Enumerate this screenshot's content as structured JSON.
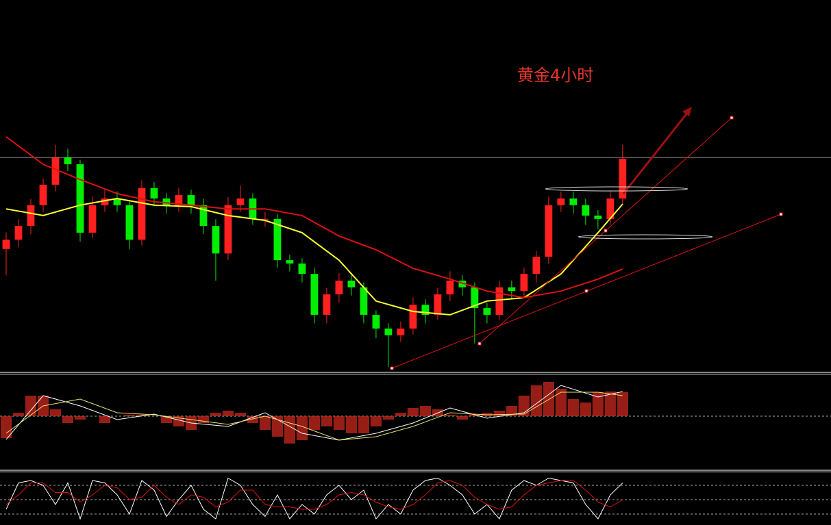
{
  "chart_data": [
    {
      "type": "candlestick",
      "title": "黄金4小时",
      "up_color": "#ff2020",
      "down_color": "#00ee00",
      "xlim": [
        -0.5,
        66.9
      ],
      "ylim": [
        0,
        100
      ],
      "open": [
        33.0,
        35.5,
        39.2,
        44.8,
        50.3,
        57.6,
        55.8,
        37.4,
        44.8,
        46.6,
        44.8,
        35.5,
        49.4,
        46.6,
        44.8,
        47.5,
        44.8,
        39.2,
        31.8,
        44.8,
        46.6,
        41.1,
        41.1,
        30.0,
        29.1,
        26.3,
        15.3,
        20.8,
        24.5,
        22.7,
        15.3,
        11.6,
        9.8,
        11.6,
        18.0,
        15.3,
        20.8,
        24.5,
        22.7,
        17.1,
        15.3,
        22.7,
        21.7,
        26.3,
        30.9,
        44.8,
        46.6,
        44.8,
        42.0,
        41.1,
        46.6
      ],
      "high": [
        37.5,
        41.0,
        46.5,
        52.0,
        61.0,
        60.0,
        57.0,
        47.0,
        49.0,
        48.5,
        46.0,
        51.5,
        51.0,
        48.0,
        49.5,
        49.0,
        46.5,
        41.0,
        47.0,
        50.0,
        48.0,
        43.0,
        42.5,
        31.5,
        30.5,
        28.0,
        22.5,
        26.5,
        26.0,
        24.0,
        16.5,
        13.0,
        13.5,
        20.0,
        19.5,
        22.5,
        27.0,
        26.0,
        24.0,
        18.5,
        24.5,
        24.5,
        28.0,
        32.5,
        47.0,
        48.5,
        48.5,
        46.5,
        43.5,
        48.5,
        61.0
      ],
      "low": [
        26.0,
        33.5,
        37.0,
        43.0,
        48.5,
        54.0,
        35.0,
        36.0,
        43.0,
        43.0,
        33.0,
        34.0,
        44.5,
        42.5,
        43.0,
        42.5,
        37.0,
        24.5,
        30.0,
        43.0,
        39.5,
        39.0,
        28.0,
        27.0,
        24.0,
        13.0,
        13.0,
        18.5,
        20.5,
        13.0,
        9.0,
        1.3,
        8.0,
        10.0,
        13.0,
        14.0,
        19.0,
        20.5,
        7.6,
        13.0,
        14.0,
        19.5,
        20.0,
        24.0,
        29.0,
        43.0,
        42.5,
        39.5,
        38.5,
        39.5,
        45.0
      ],
      "close": [
        35.5,
        39.2,
        44.8,
        50.3,
        57.6,
        55.8,
        37.4,
        44.8,
        46.6,
        44.8,
        35.5,
        49.4,
        46.6,
        44.8,
        47.5,
        44.8,
        39.2,
        31.8,
        44.8,
        46.6,
        41.1,
        41.1,
        30.0,
        29.1,
        26.3,
        15.3,
        20.8,
        24.5,
        22.7,
        15.3,
        11.6,
        9.8,
        11.6,
        18.0,
        15.3,
        20.8,
        24.5,
        22.7,
        17.1,
        15.3,
        22.7,
        21.7,
        26.3,
        30.9,
        44.8,
        46.6,
        44.8,
        42.0,
        41.1,
        46.6,
        57.3
      ],
      "series": [
        {
          "color": "#ffff33",
          "x": [
            0,
            3,
            6,
            9,
            12,
            15,
            18,
            21,
            24,
            27,
            30,
            33,
            36,
            39,
            42,
            45,
            48,
            50
          ],
          "values": [
            43.8,
            42.0,
            44.8,
            46.6,
            44.8,
            44.4,
            42.0,
            40.7,
            37.4,
            30.0,
            19.0,
            16.2,
            15.3,
            19.0,
            19.9,
            26.3,
            37.4,
            45.1
          ]
        },
        {
          "color": "#dd1111",
          "x": [
            0,
            3,
            6,
            9,
            12,
            15,
            18,
            21,
            24,
            27,
            30,
            33,
            36,
            39,
            42,
            45,
            48,
            50
          ],
          "values": [
            63.2,
            55.8,
            51.7,
            47.9,
            45.7,
            44.8,
            43.8,
            43.8,
            42.0,
            36.5,
            32.8,
            27.8,
            24.9,
            21.7,
            19.9,
            21.7,
            24.9,
            27.6
          ]
        }
      ]
    },
    {
      "type": "bar",
      "color": "#c8281e",
      "xlim": [
        -0.5,
        66.9
      ],
      "ylim": [
        -7.8,
        6
      ],
      "levels": [
        0
      ],
      "values": [
        -3.2,
        0.5,
        3.0,
        3.0,
        1.0,
        -1.0,
        -0.5,
        0,
        -1.0,
        0,
        0.2,
        0.2,
        0,
        -1.0,
        -1.5,
        -2.0,
        -1.0,
        0.5,
        0.8,
        0.5,
        -1.0,
        -2.0,
        -3.0,
        -4.0,
        -3.5,
        -2.0,
        -1.5,
        -2.0,
        -2.5,
        -2.5,
        -1.5,
        -0.5,
        0.5,
        1.2,
        1.5,
        1.0,
        0.2,
        -0.5,
        0.3,
        0.5,
        0.8,
        1.5,
        3.0,
        4.5,
        5.0,
        4.0,
        2.5,
        2.0,
        3.5,
        3.6,
        3.5
      ],
      "series": [
        {
          "color": "#ffffff",
          "x": [
            0,
            3,
            6,
            9,
            12,
            15,
            18,
            21,
            24,
            27,
            30,
            33,
            36,
            39,
            42,
            45,
            48,
            50
          ],
          "values": [
            -3.4,
            3.0,
            1.5,
            -0.5,
            0.3,
            -1.0,
            -1.5,
            0.5,
            -2.5,
            -3.5,
            -2.5,
            -1.0,
            1.2,
            -0.3,
            0.5,
            4.5,
            2.8,
            3.6
          ]
        },
        {
          "color": "#e8e070",
          "x": [
            0,
            3,
            6,
            9,
            12,
            15,
            18,
            21,
            24,
            27,
            30,
            33,
            36,
            39,
            42,
            45,
            48,
            50
          ],
          "values": [
            -2.5,
            1.5,
            2.5,
            0.5,
            0.2,
            -0.5,
            -1.2,
            0,
            -1.5,
            -3.5,
            -3.0,
            -1.5,
            0.5,
            0.2,
            0.3,
            3.5,
            3.5,
            3.0
          ]
        }
      ]
    },
    {
      "type": "line",
      "xlim": [
        -0.5,
        66.9
      ],
      "ylim": [
        0,
        100
      ],
      "levels": [
        80,
        50,
        20
      ],
      "series": [
        {
          "color": "#ffffff",
          "values": [
            30,
            85,
            90,
            80,
            40,
            85,
            10,
            90,
            85,
            60,
            20,
            90,
            70,
            15,
            50,
            80,
            30,
            10,
            95,
            80,
            40,
            15,
            60,
            10,
            40,
            20,
            60,
            80,
            50,
            70,
            10,
            40,
            20,
            70,
            90,
            95,
            80,
            60,
            20,
            40,
            10,
            70,
            90,
            80,
            95,
            90,
            85,
            40,
            10,
            60,
            85
          ]
        },
        {
          "color": "#dd1111",
          "values": [
            40,
            60,
            85,
            85,
            65,
            65,
            45,
            60,
            80,
            75,
            50,
            55,
            80,
            55,
            40,
            60,
            55,
            35,
            45,
            70,
            70,
            40,
            35,
            35,
            30,
            30,
            40,
            60,
            65,
            60,
            45,
            35,
            30,
            40,
            60,
            85,
            90,
            80,
            55,
            40,
            30,
            35,
            60,
            80,
            85,
            90,
            90,
            70,
            45,
            35,
            50
          ]
        }
      ]
    }
  ]
}
